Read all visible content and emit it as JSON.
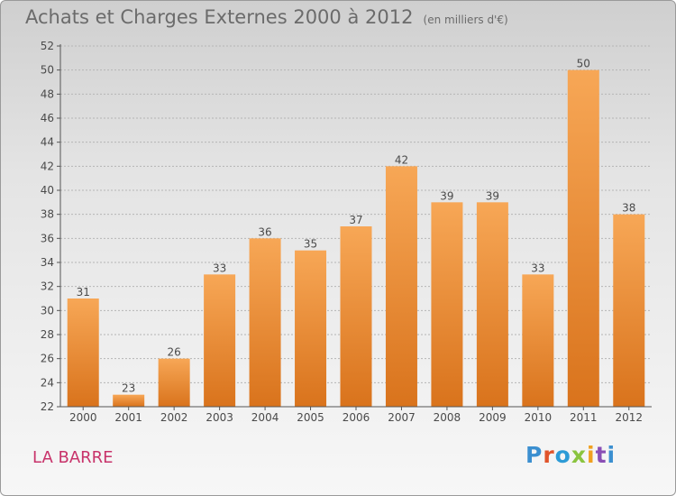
{
  "title": "Achats et Charges Externes 2000 à 2012",
  "unit_note": "(en milliers d'€)",
  "town": "LA BARRE",
  "logo": "Proxiti",
  "colors": {
    "bar_light": "#f7a756",
    "bar_dark": "#d9731c",
    "grid": "#b5b5b5",
    "axis": "#555555",
    "text": "#4a4a4a",
    "town": "#c8336a"
  },
  "chart_data": {
    "type": "bar",
    "categories": [
      "2000",
      "2001",
      "2002",
      "2003",
      "2004",
      "2005",
      "2006",
      "2007",
      "2008",
      "2009",
      "2010",
      "2011",
      "2012"
    ],
    "values": [
      31,
      23,
      26,
      33,
      36,
      35,
      37,
      42,
      39,
      39,
      33,
      50,
      38
    ],
    "data_labels": [
      "31",
      "23",
      "26",
      "33",
      "36",
      "35",
      "37",
      "42",
      "39",
      "39",
      "33",
      "50",
      "38"
    ],
    "title": "Achats et Charges Externes 2000 à 2012",
    "xlabel": "",
    "ylabel": "",
    "ylim": [
      22,
      52
    ],
    "yticks": [
      22,
      24,
      26,
      28,
      30,
      32,
      34,
      36,
      38,
      40,
      42,
      44,
      46,
      48,
      50,
      52
    ],
    "grid": true,
    "legend": false
  }
}
